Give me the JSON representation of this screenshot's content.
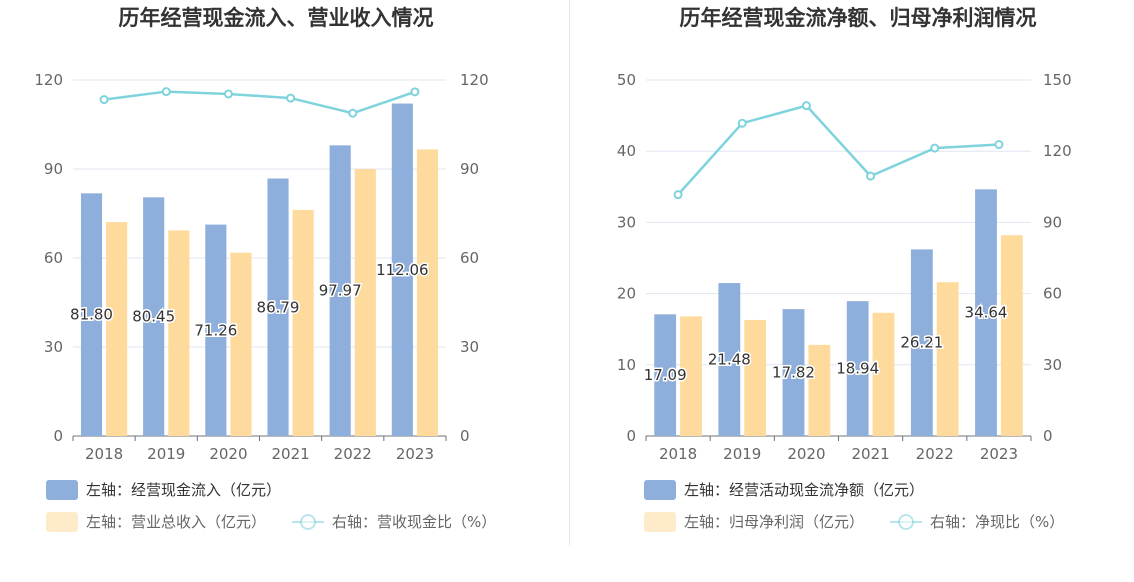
{
  "chart_data": [
    {
      "type": "bar",
      "title": "历年经营现金流入、营业收入情况",
      "categories": [
        "2018",
        "2019",
        "2020",
        "2021",
        "2022",
        "2023"
      ],
      "left_axis": {
        "ylim": [
          0,
          120
        ],
        "ticks": [
          "0",
          "30",
          "60",
          "90",
          "120"
        ]
      },
      "right_axis": {
        "ylim": [
          0,
          120
        ],
        "ticks": [
          "0",
          "30",
          "60",
          "90",
          "120"
        ]
      },
      "series": [
        {
          "name": "左轴：经营现金流入（亿元）",
          "axis": "left",
          "kind": "bar",
          "color": "#8eaedb",
          "values": [
            81.8,
            80.45,
            71.26,
            86.79,
            97.97,
            112.06
          ],
          "labels": [
            "81.80",
            "80.45",
            "71.26",
            "86.79",
            "97.97",
            "112.06"
          ]
        },
        {
          "name": "左轴：营业总收入（亿元）",
          "axis": "left",
          "kind": "bar",
          "color": "#fedb9c",
          "values": [
            72.1,
            69.3,
            61.8,
            76.2,
            90.0,
            96.6
          ]
        },
        {
          "name": "右轴：营收现金比（%）",
          "axis": "right",
          "kind": "line",
          "color": "#7fd3dd",
          "values": [
            113.4,
            116.1,
            115.3,
            113.9,
            108.8,
            116.0
          ]
        }
      ],
      "grid": true,
      "legend_position": "bottom-left"
    },
    {
      "type": "bar",
      "title": "历年经营现金流净额、归母净利润情况",
      "categories": [
        "2018",
        "2019",
        "2020",
        "2021",
        "2022",
        "2023"
      ],
      "left_axis": {
        "ylim": [
          0,
          50
        ],
        "ticks": [
          "0",
          "10",
          "20",
          "30",
          "40",
          "50"
        ]
      },
      "right_axis": {
        "ylim": [
          0,
          150
        ],
        "ticks": [
          "0",
          "30",
          "60",
          "90",
          "120",
          "150"
        ]
      },
      "series": [
        {
          "name": "左轴：经营活动现金流净额（亿元）",
          "axis": "left",
          "kind": "bar",
          "color": "#8eaedb",
          "values": [
            17.09,
            21.48,
            17.82,
            18.94,
            26.21,
            34.64
          ],
          "labels": [
            "17.09",
            "21.48",
            "17.82",
            "18.94",
            "26.21",
            "34.64"
          ]
        },
        {
          "name": "左轴：归母净利润（亿元）",
          "axis": "left",
          "kind": "bar",
          "color": "#fedb9c",
          "values": [
            16.8,
            16.3,
            12.8,
            17.3,
            21.6,
            28.2
          ]
        },
        {
          "name": "右轴：净现比（%）",
          "axis": "right",
          "kind": "line",
          "color": "#7fd3dd",
          "values": [
            101.7,
            131.8,
            139.2,
            109.5,
            121.3,
            122.8
          ]
        }
      ],
      "grid": true,
      "legend_position": "bottom-left"
    }
  ]
}
